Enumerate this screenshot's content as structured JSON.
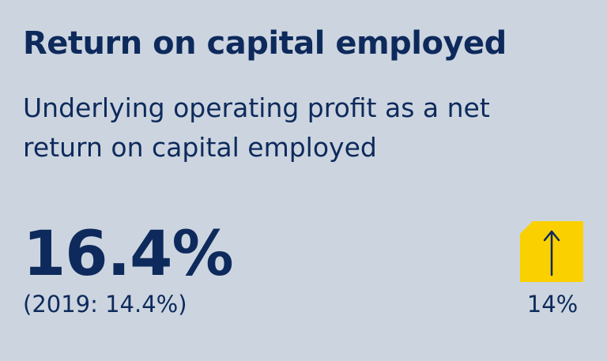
{
  "header": {
    "title": "Return on capital employed",
    "subtitle": "Underlying operating profit as a net return on capital employed"
  },
  "metric": {
    "value": "16.4%",
    "prior": "(2019: 14.4%)",
    "change": "14%",
    "direction_icon": "arrow-up-icon"
  },
  "colors": {
    "background": "#ccd5df",
    "text": "#0e2a5c",
    "badge": "#fbd000"
  }
}
